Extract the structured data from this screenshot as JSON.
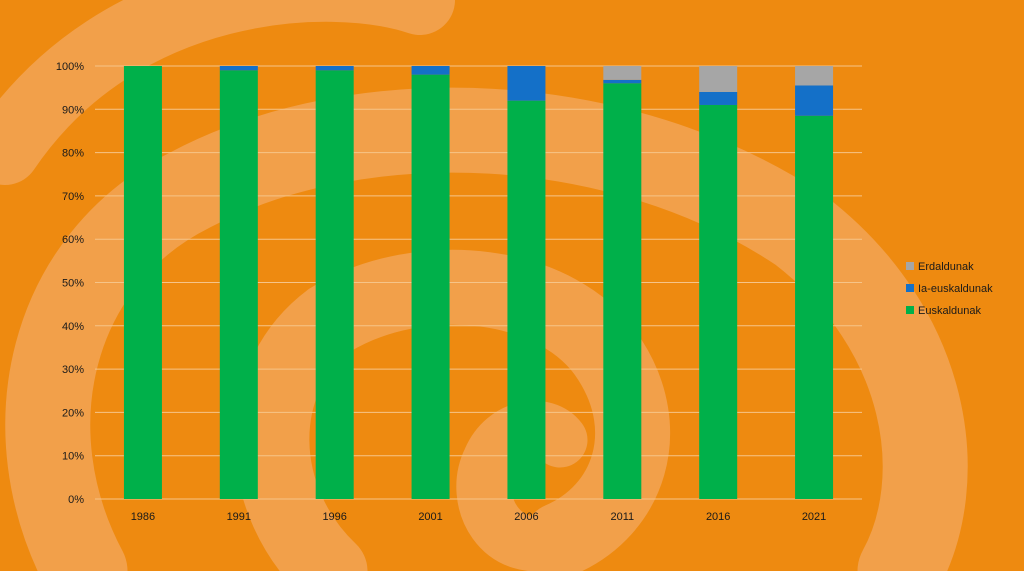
{
  "colors": {
    "background": "#ee8a10",
    "swirl": "#f2a04a",
    "gridline": "#f6c488"
  },
  "chart_data": {
    "type": "bar",
    "stacked": true,
    "title": "",
    "xlabel": "",
    "ylabel": "",
    "categories": [
      "1986",
      "1991",
      "1996",
      "2001",
      "2006",
      "2011",
      "2016",
      "2021"
    ],
    "ylim": [
      0,
      100
    ],
    "yticks": [
      "0%",
      "10%",
      "20%",
      "30%",
      "40%",
      "50%",
      "60%",
      "70%",
      "80%",
      "90%",
      "100%"
    ],
    "grid": true,
    "legend_position": "right",
    "series": [
      {
        "name": "Euskaldunak",
        "color": "#00b04a",
        "values": [
          100,
          99,
          99,
          98,
          92,
          96,
          91,
          88.5
        ]
      },
      {
        "name": "Ia-euskaldunak",
        "color": "#1470c8",
        "values": [
          0,
          1,
          1,
          2,
          8,
          0.8,
          3,
          7
        ]
      },
      {
        "name": "Erdaldunak",
        "color": "#a6a6a6",
        "values": [
          0,
          0,
          0,
          0,
          0,
          3.2,
          6,
          4.5
        ]
      }
    ]
  }
}
